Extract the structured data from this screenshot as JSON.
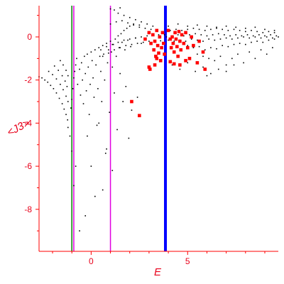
{
  "chart_data": {
    "type": "scatter",
    "title": "",
    "xlabel": "E",
    "ylabel": "<J3>",
    "xlim": [
      -2.7,
      9.7
    ],
    "ylim": [
      -9.95,
      1.45
    ],
    "x_ticks": [
      {
        "value": 0,
        "label": "0"
      },
      {
        "value": 5,
        "label": "5"
      }
    ],
    "y_ticks": [
      {
        "value": 0,
        "label": "0"
      },
      {
        "value": -2,
        "label": "-2"
      },
      {
        "value": -4,
        "label": "-4"
      },
      {
        "value": -6,
        "label": "-6"
      },
      {
        "value": -8,
        "label": "-8"
      }
    ],
    "grid": false,
    "colors": {
      "axis": "#ff0000",
      "text": "#e8001a",
      "points": "#000000",
      "highlight": "#ff0000",
      "green_line": "#008000",
      "magenta_line": "#e000e0",
      "blue_line": "#0000ff"
    },
    "vlines": [
      {
        "x": -1.0,
        "color": "#008000",
        "width": 1.5
      },
      {
        "x": -0.9,
        "color": "#e000e0",
        "width": 1.5
      },
      {
        "x": 1.0,
        "color": "#e000e0",
        "width": 1.5
      },
      {
        "x": 3.85,
        "color": "#0000ff",
        "width": 4
      }
    ],
    "series": [
      {
        "color": "#000000",
        "marker_size": 1.2,
        "points": [
          [
            -2.7,
            -1.85
          ],
          [
            -2.55,
            -1.9
          ],
          [
            -2.4,
            -2.0
          ],
          [
            -2.25,
            -2.1
          ],
          [
            -2.1,
            -2.25
          ],
          [
            -1.95,
            -2.4
          ],
          [
            -1.8,
            -2.6
          ],
          [
            -1.65,
            -2.85
          ],
          [
            -1.5,
            -3.1
          ],
          [
            -1.4,
            -3.35
          ],
          [
            -1.3,
            -3.6
          ],
          [
            -1.22,
            -3.85
          ],
          [
            -2.2,
            -1.6
          ],
          [
            -2.0,
            -1.75
          ],
          [
            -1.8,
            -1.95
          ],
          [
            -1.6,
            -2.2
          ],
          [
            -1.45,
            -2.45
          ],
          [
            -1.3,
            -2.75
          ],
          [
            -1.2,
            -3.0
          ],
          [
            -1.9,
            -1.35
          ],
          [
            -1.7,
            -1.55
          ],
          [
            -1.5,
            -1.8
          ],
          [
            -1.35,
            -2.05
          ],
          [
            -1.25,
            -2.3
          ],
          [
            -1.6,
            -1.1
          ],
          [
            -1.45,
            -1.3
          ],
          [
            -1.3,
            -1.55
          ],
          [
            -1.2,
            -1.8
          ],
          [
            -1.2,
            -4.2
          ],
          [
            -1.1,
            -4.6
          ],
          [
            -1.05,
            -3.3
          ],
          [
            -1.0,
            -2.9
          ],
          [
            -0.95,
            -2.4
          ],
          [
            -0.9,
            -1.9
          ],
          [
            -0.85,
            -1.6
          ],
          [
            -0.8,
            -1.3
          ],
          [
            -0.75,
            -1.0
          ],
          [
            -0.7,
            -2.2
          ],
          [
            -0.6,
            -1.5
          ],
          [
            -0.55,
            -2.7
          ],
          [
            -0.5,
            -1.2
          ],
          [
            -0.45,
            -2.0
          ],
          [
            -0.4,
            -3.1
          ],
          [
            -0.35,
            -0.9
          ],
          [
            -0.3,
            -1.7
          ],
          [
            -0.25,
            -2.5
          ],
          [
            -0.2,
            -0.8
          ],
          [
            -0.15,
            -1.4
          ],
          [
            -0.1,
            -3.6
          ],
          [
            -0.05,
            -2.2
          ],
          [
            0.0,
            -0.7
          ],
          [
            0.05,
            -1.1
          ],
          [
            0.1,
            -1.9
          ],
          [
            0.15,
            -2.8
          ],
          [
            0.2,
            -0.6
          ],
          [
            0.25,
            -1.3
          ],
          [
            0.3,
            -4.1
          ],
          [
            0.35,
            -2.4
          ],
          [
            0.4,
            -0.5
          ],
          [
            0.45,
            -0.9
          ],
          [
            0.5,
            -1.6
          ],
          [
            0.55,
            -3.0
          ],
          [
            0.6,
            -0.4
          ],
          [
            0.65,
            -0.8
          ],
          [
            0.7,
            -2.0
          ],
          [
            0.75,
            -5.4
          ],
          [
            0.8,
            -0.3
          ],
          [
            0.85,
            -1.2
          ],
          [
            0.9,
            -0.6
          ],
          [
            0.95,
            -3.5
          ],
          [
            1.0,
            -0.2
          ],
          [
            1.05,
            -0.7
          ],
          [
            1.1,
            -1.4
          ],
          [
            1.15,
            -0.35
          ],
          [
            1.2,
            -2.6
          ],
          [
            1.25,
            -0.1
          ],
          [
            1.3,
            -0.9
          ],
          [
            1.35,
            -4.3
          ],
          [
            1.4,
            0.05
          ],
          [
            1.45,
            -0.5
          ],
          [
            1.5,
            -1.7
          ],
          [
            1.55,
            0.15
          ],
          [
            1.6,
            -0.25
          ],
          [
            1.65,
            -3.0
          ],
          [
            1.7,
            0.3
          ],
          [
            1.75,
            -0.6
          ],
          [
            1.8,
            -2.3
          ],
          [
            1.85,
            0.4
          ],
          [
            1.9,
            -0.15
          ],
          [
            1.95,
            -4.7
          ],
          [
            2.0,
            0.5
          ],
          [
            2.05,
            -0.45
          ],
          [
            2.1,
            -3.4
          ],
          [
            2.2,
            0.6
          ],
          [
            2.3,
            -0.05
          ],
          [
            2.4,
            -2.8
          ],
          [
            2.5,
            0.55
          ],
          [
            2.6,
            -0.3
          ],
          [
            -0.8,
            -6.0
          ],
          [
            -0.6,
            -9.0
          ],
          [
            -0.3,
            -8.3
          ],
          [
            0.0,
            -6.0
          ],
          [
            0.2,
            -7.4
          ],
          [
            0.6,
            -7.1
          ],
          [
            -0.9,
            -6.9
          ],
          [
            -0.2,
            -4.6
          ],
          [
            0.8,
            -5.2
          ],
          [
            1.1,
            -6.2
          ],
          [
            -1.0,
            -5.3
          ],
          [
            0.4,
            -4.0
          ],
          [
            0.6,
            -0.9
          ],
          [
            0.9,
            -0.75
          ],
          [
            1.2,
            -0.6
          ],
          [
            1.5,
            -0.5
          ],
          [
            1.8,
            -0.4
          ],
          [
            2.1,
            -0.35
          ],
          [
            2.4,
            -0.3
          ],
          [
            2.7,
            -0.25
          ],
          [
            3.0,
            -0.2
          ],
          [
            3.3,
            -0.2
          ],
          [
            3.6,
            -0.18
          ],
          [
            0.5,
            -0.6
          ],
          [
            0.8,
            -0.45
          ],
          [
            1.1,
            -0.35
          ],
          [
            1.4,
            -0.25
          ],
          [
            1.7,
            -0.15
          ],
          [
            2.0,
            -0.1
          ],
          [
            2.3,
            -0.05
          ],
          [
            2.6,
            0.0
          ],
          [
            2.9,
            0.05
          ],
          [
            3.2,
            0.08
          ],
          [
            3.5,
            0.1
          ],
          [
            1.0,
            0.6
          ],
          [
            1.3,
            0.7
          ],
          [
            1.6,
            0.75
          ],
          [
            1.9,
            0.65
          ],
          [
            2.2,
            0.55
          ],
          [
            2.5,
            0.45
          ],
          [
            2.8,
            0.4
          ],
          [
            3.1,
            0.35
          ],
          [
            1.4,
            1.1
          ],
          [
            1.7,
            1.0
          ],
          [
            2.0,
            0.9
          ],
          [
            2.3,
            0.8
          ],
          [
            2.6,
            0.7
          ],
          [
            2.9,
            0.6
          ],
          [
            3.2,
            0.5
          ],
          [
            1.0,
            1.3
          ],
          [
            1.2,
            1.25
          ],
          [
            1.5,
            1.35
          ],
          [
            3.8,
            0.1
          ],
          [
            4.1,
            0.3
          ],
          [
            4.4,
            0.35
          ],
          [
            4.7,
            0.3
          ],
          [
            5.0,
            0.35
          ],
          [
            5.3,
            0.4
          ],
          [
            5.6,
            0.35
          ],
          [
            5.9,
            0.3
          ],
          [
            6.2,
            0.35
          ],
          [
            6.5,
            0.4
          ],
          [
            6.8,
            0.35
          ],
          [
            7.1,
            0.3
          ],
          [
            7.4,
            0.35
          ],
          [
            7.7,
            0.3
          ],
          [
            8.0,
            0.25
          ],
          [
            8.3,
            0.3
          ],
          [
            8.6,
            0.25
          ],
          [
            8.9,
            0.2
          ],
          [
            9.2,
            0.25
          ],
          [
            9.5,
            0.2
          ],
          [
            3.9,
            0.0
          ],
          [
            4.2,
            0.05
          ],
          [
            4.5,
            0.1
          ],
          [
            4.8,
            0.05
          ],
          [
            5.1,
            0.1
          ],
          [
            5.4,
            0.15
          ],
          [
            5.7,
            0.1
          ],
          [
            6.0,
            0.05
          ],
          [
            6.3,
            0.1
          ],
          [
            6.6,
            0.15
          ],
          [
            6.9,
            0.1
          ],
          [
            7.2,
            0.05
          ],
          [
            7.5,
            0.1
          ],
          [
            7.8,
            0.05
          ],
          [
            8.1,
            0.1
          ],
          [
            8.4,
            0.05
          ],
          [
            8.7,
            0.1
          ],
          [
            9.0,
            0.05
          ],
          [
            9.3,
            0.1
          ],
          [
            9.6,
            0.05
          ],
          [
            4.0,
            -0.15
          ],
          [
            4.3,
            -0.2
          ],
          [
            4.6,
            -0.15
          ],
          [
            4.9,
            -0.2
          ],
          [
            5.2,
            -0.1
          ],
          [
            5.5,
            -0.15
          ],
          [
            5.8,
            -0.2
          ],
          [
            6.1,
            -0.1
          ],
          [
            6.4,
            -0.15
          ],
          [
            6.7,
            -0.1
          ],
          [
            7.0,
            -0.05
          ],
          [
            7.3,
            -0.1
          ],
          [
            7.6,
            -0.05
          ],
          [
            7.9,
            0.0
          ],
          [
            8.2,
            -0.05
          ],
          [
            8.5,
            0.0
          ],
          [
            8.8,
            -0.05
          ],
          [
            9.1,
            0.0
          ],
          [
            9.4,
            -0.05
          ],
          [
            9.7,
            0.0
          ],
          [
            5.0,
            -0.4
          ],
          [
            5.3,
            -0.5
          ],
          [
            5.6,
            -0.45
          ],
          [
            5.9,
            -0.6
          ],
          [
            6.2,
            -0.5
          ],
          [
            6.5,
            -0.55
          ],
          [
            6.8,
            -0.4
          ],
          [
            7.1,
            -0.45
          ],
          [
            7.4,
            -0.35
          ],
          [
            7.7,
            -0.3
          ],
          [
            8.0,
            -0.35
          ],
          [
            8.3,
            -0.25
          ],
          [
            8.6,
            -0.2
          ],
          [
            8.9,
            -0.25
          ],
          [
            9.2,
            -0.15
          ],
          [
            9.5,
            -0.1
          ],
          [
            5.5,
            -0.8
          ],
          [
            5.8,
            -0.9
          ],
          [
            6.1,
            -1.0
          ],
          [
            6.4,
            -1.1
          ],
          [
            6.7,
            -0.9
          ],
          [
            7.0,
            -1.3
          ],
          [
            7.3,
            -1.0
          ],
          [
            7.6,
            -0.8
          ],
          [
            7.9,
            -1.2
          ],
          [
            8.2,
            -0.7
          ],
          [
            8.5,
            -1.0
          ],
          [
            8.8,
            -0.6
          ],
          [
            9.1,
            -0.8
          ],
          [
            9.4,
            -0.5
          ],
          [
            4.2,
            -1.3
          ],
          [
            4.6,
            -1.5
          ],
          [
            5.0,
            -1.2
          ],
          [
            5.4,
            -1.6
          ],
          [
            5.8,
            -1.4
          ],
          [
            6.2,
            -1.7
          ],
          [
            6.6,
            -1.5
          ],
          [
            7.0,
            -1.6
          ],
          [
            7.4,
            -1.3
          ],
          [
            6.0,
            -1.8
          ],
          [
            4.0,
            0.5
          ],
          [
            4.5,
            0.6
          ],
          [
            5.0,
            0.5
          ],
          [
            5.5,
            0.55
          ],
          [
            6.0,
            0.5
          ],
          [
            6.5,
            0.45
          ],
          [
            7.0,
            0.5
          ],
          [
            7.5,
            0.45
          ],
          [
            8.0,
            0.4
          ],
          [
            8.5,
            0.45
          ],
          [
            9.0,
            0.35
          ],
          [
            9.5,
            0.3
          ]
        ]
      },
      {
        "color": "#ff0000",
        "marker_size": 2.3,
        "points": [
          [
            2.8,
            -0.1
          ],
          [
            3.0,
            0.2
          ],
          [
            3.1,
            -0.3
          ],
          [
            3.2,
            0.1
          ],
          [
            3.25,
            -0.6
          ],
          [
            3.3,
            -0.2
          ],
          [
            3.35,
            -0.9
          ],
          [
            3.4,
            0.3
          ],
          [
            3.45,
            -0.4
          ],
          [
            3.5,
            -0.75
          ],
          [
            3.55,
            0.0
          ],
          [
            3.6,
            -1.1
          ],
          [
            3.65,
            -0.5
          ],
          [
            3.7,
            0.2
          ],
          [
            3.75,
            -0.3
          ],
          [
            3.8,
            -0.8
          ],
          [
            4.0,
            0.3
          ],
          [
            4.1,
            -0.1
          ],
          [
            4.15,
            -0.5
          ],
          [
            4.2,
            0.0
          ],
          [
            4.25,
            -0.3
          ],
          [
            4.3,
            -0.7
          ],
          [
            4.35,
            0.2
          ],
          [
            4.4,
            -0.1
          ],
          [
            4.45,
            -0.45
          ],
          [
            4.5,
            -0.9
          ],
          [
            4.55,
            0.25
          ],
          [
            4.6,
            -0.2
          ],
          [
            4.65,
            -0.6
          ],
          [
            4.7,
            0.1
          ],
          [
            4.8,
            -0.3
          ],
          [
            4.9,
            0.2
          ],
          [
            5.0,
            -0.5
          ],
          [
            5.1,
            -1.0
          ],
          [
            5.2,
            0.0
          ],
          [
            5.3,
            -0.4
          ],
          [
            5.5,
            -1.2
          ],
          [
            5.8,
            -0.7
          ],
          [
            5.9,
            -1.5
          ],
          [
            4.1,
            -1.15
          ],
          [
            4.3,
            -1.25
          ],
          [
            4.6,
            -1.3
          ],
          [
            4.9,
            -1.1
          ],
          [
            3.0,
            -1.4
          ],
          [
            3.05,
            -1.5
          ],
          [
            3.3,
            -1.3
          ],
          [
            2.1,
            -3.0
          ],
          [
            2.5,
            -3.65
          ],
          [
            3.4,
            -1.0
          ],
          [
            5.6,
            -0.2
          ]
        ]
      }
    ]
  }
}
